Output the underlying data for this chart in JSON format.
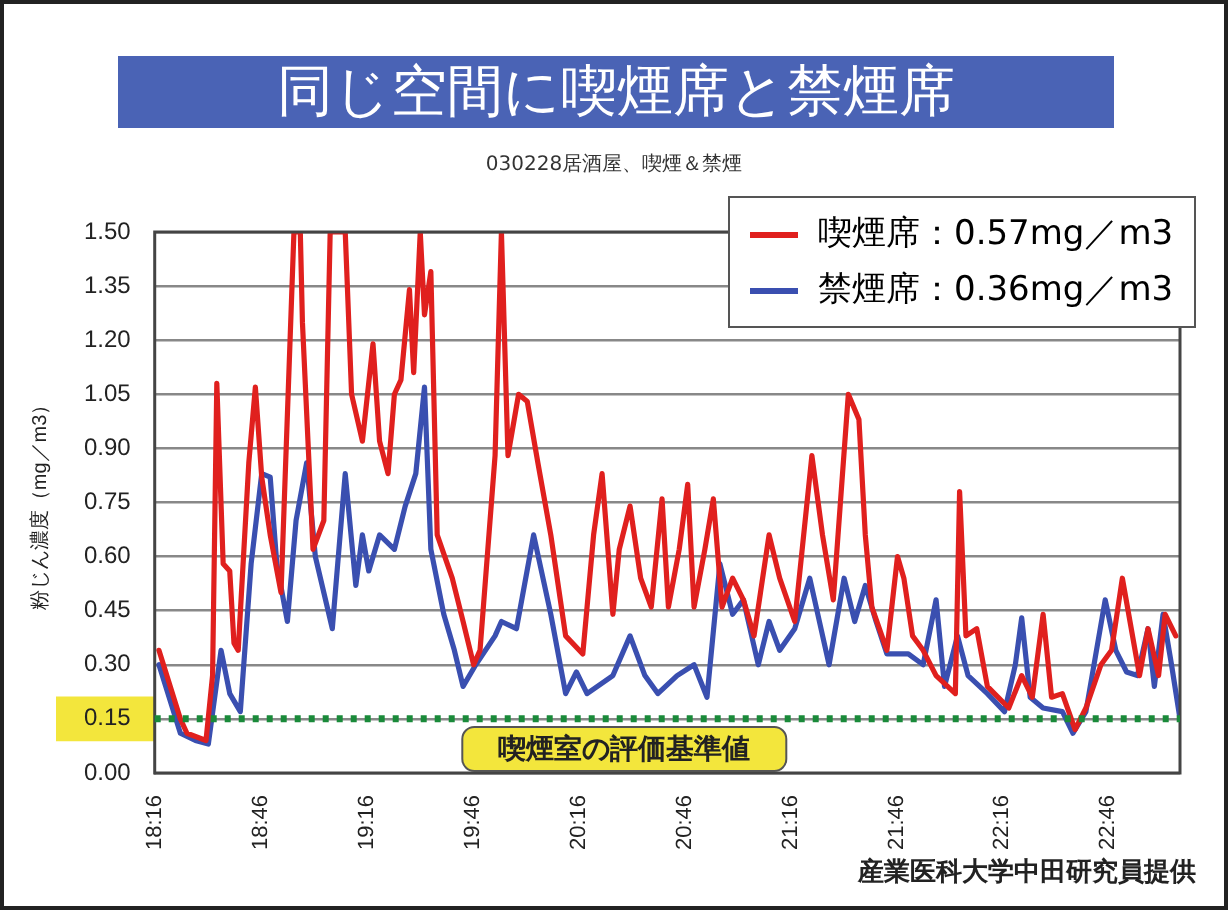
{
  "chart_data": {
    "type": "line",
    "title": "同じ空間に喫煙席と禁煙席",
    "subtitle": "030228居酒屋、喫煙＆禁煙",
    "ylabel": "粉じん濃度（mg／m3）",
    "annotations": [
      "産業医科大学中田研究員提供"
    ],
    "xlim": [
      18.267,
      23.105
    ],
    "xticks": [
      {
        "value": 18.267,
        "label": "18:16"
      },
      {
        "value": 18.767,
        "label": "18:46"
      },
      {
        "value": 19.267,
        "label": "19:16"
      },
      {
        "value": 19.767,
        "label": "19:46"
      },
      {
        "value": 20.267,
        "label": "20:16"
      },
      {
        "value": 20.767,
        "label": "20:46"
      },
      {
        "value": 21.267,
        "label": "21:16"
      },
      {
        "value": 21.767,
        "label": "21:46"
      },
      {
        "value": 22.267,
        "label": "22:16"
      },
      {
        "value": 22.767,
        "label": "22:46"
      }
    ],
    "ylim": [
      0,
      1.5
    ],
    "yticks": [
      {
        "value": 0,
        "label": "0.00"
      },
      {
        "value": 0.15,
        "label": "0.15"
      },
      {
        "value": 0.3,
        "label": "0.30"
      },
      {
        "value": 0.45,
        "label": "0.45"
      },
      {
        "value": 0.6,
        "label": "0.60"
      },
      {
        "value": 0.75,
        "label": "0.75"
      },
      {
        "value": 0.9,
        "label": "0.90"
      },
      {
        "value": 1.05,
        "label": "1.05"
      },
      {
        "value": 1.2,
        "label": "1.20"
      },
      {
        "value": 1.35,
        "label": "1.35"
      },
      {
        "value": 1.5,
        "label": "1.50"
      }
    ],
    "grid": "y",
    "legend": "top right",
    "marker": "none",
    "ref_lines": [
      {
        "axis": "y",
        "value": 0.15,
        "label": "喫煙室の評価基準値",
        "color": "#1a8a3a",
        "line_style": "dotted"
      }
    ],
    "series": [
      {
        "name": "喫煙席：0.57mg／m3",
        "color": "#e0201e",
        "x": [
          18.287,
          18.388,
          18.419,
          18.509,
          18.54,
          18.56,
          18.59,
          18.621,
          18.641,
          18.661,
          18.711,
          18.742,
          18.772,
          18.812,
          18.863,
          18.924,
          18.954,
          18.964,
          19.014,
          19.065,
          19.095,
          19.166,
          19.196,
          19.247,
          19.297,
          19.328,
          19.368,
          19.398,
          19.429,
          19.469,
          19.489,
          19.52,
          19.54,
          19.57,
          19.6,
          19.671,
          19.722,
          19.772,
          19.802,
          19.873,
          19.903,
          19.934,
          19.984,
          20.025,
          20.075,
          20.136,
          20.206,
          20.287,
          20.338,
          20.378,
          20.429,
          20.459,
          20.51,
          20.56,
          20.61,
          20.661,
          20.691,
          20.742,
          20.782,
          20.812,
          20.863,
          20.903,
          20.944,
          20.994,
          21.045,
          21.095,
          21.166,
          21.216,
          21.287,
          21.368,
          21.418,
          21.469,
          21.54,
          21.59,
          21.62,
          21.651,
          21.722,
          21.772,
          21.802,
          21.843,
          21.893,
          21.954,
          22.045,
          22.065,
          22.095,
          22.146,
          22.196,
          22.297,
          22.358,
          22.408,
          22.459,
          22.499,
          22.55,
          22.61,
          22.661,
          22.732,
          22.782,
          22.833,
          22.863,
          22.914,
          22.954,
          23.004,
          23.035,
          23.085
        ],
        "values": [
          0.34,
          0.15,
          0.11,
          0.09,
          0.27,
          1.08,
          0.58,
          0.56,
          0.36,
          0.34,
          0.86,
          1.07,
          0.82,
          0.66,
          0.5,
          1.5,
          1.5,
          1.25,
          0.62,
          0.7,
          1.5,
          1.5,
          1.05,
          0.92,
          1.19,
          0.92,
          0.83,
          1.05,
          1.09,
          1.34,
          1.11,
          1.5,
          1.27,
          1.39,
          0.66,
          0.54,
          0.42,
          0.3,
          0.34,
          0.88,
          1.5,
          0.88,
          1.05,
          1.03,
          0.86,
          0.66,
          0.38,
          0.33,
          0.66,
          0.83,
          0.44,
          0.62,
          0.74,
          0.54,
          0.46,
          0.76,
          0.46,
          0.62,
          0.8,
          0.46,
          0.62,
          0.76,
          0.46,
          0.54,
          0.48,
          0.38,
          0.66,
          0.54,
          0.42,
          0.88,
          0.66,
          0.48,
          1.05,
          0.98,
          0.66,
          0.46,
          0.34,
          0.6,
          0.54,
          0.38,
          0.34,
          0.27,
          0.22,
          0.78,
          0.38,
          0.4,
          0.24,
          0.18,
          0.27,
          0.21,
          0.44,
          0.21,
          0.22,
          0.12,
          0.18,
          0.3,
          0.34,
          0.54,
          0.44,
          0.27,
          0.4,
          0.27,
          0.44,
          0.38
        ]
      },
      {
        "name": "禁煙席：0.36mg／m3",
        "color": "#3a4fb0",
        "x": [
          18.287,
          18.388,
          18.459,
          18.52,
          18.58,
          18.621,
          18.671,
          18.722,
          18.772,
          18.812,
          18.843,
          18.893,
          18.934,
          18.984,
          19.025,
          19.105,
          19.166,
          19.216,
          19.247,
          19.277,
          19.328,
          19.398,
          19.449,
          19.499,
          19.54,
          19.57,
          19.631,
          19.681,
          19.722,
          19.782,
          19.873,
          19.903,
          19.974,
          20.055,
          20.136,
          20.206,
          20.257,
          20.307,
          20.429,
          20.51,
          20.58,
          20.641,
          20.732,
          20.812,
          20.873,
          20.934,
          20.994,
          21.045,
          21.115,
          21.166,
          21.216,
          21.287,
          21.358,
          21.449,
          21.52,
          21.57,
          21.62,
          21.671,
          21.722,
          21.823,
          21.893,
          21.954,
          21.994,
          22.055,
          22.105,
          22.196,
          22.277,
          22.328,
          22.358,
          22.398,
          22.459,
          22.55,
          22.6,
          22.661,
          22.752,
          22.802,
          22.853,
          22.904,
          22.954,
          22.984,
          23.025,
          23.065,
          23.105
        ],
        "values": [
          0.3,
          0.11,
          0.09,
          0.08,
          0.34,
          0.22,
          0.17,
          0.58,
          0.83,
          0.82,
          0.58,
          0.42,
          0.7,
          0.86,
          0.6,
          0.4,
          0.83,
          0.52,
          0.66,
          0.56,
          0.66,
          0.62,
          0.74,
          0.83,
          1.07,
          0.62,
          0.44,
          0.34,
          0.24,
          0.3,
          0.38,
          0.42,
          0.4,
          0.66,
          0.44,
          0.22,
          0.28,
          0.22,
          0.27,
          0.38,
          0.27,
          0.22,
          0.27,
          0.3,
          0.21,
          0.58,
          0.44,
          0.48,
          0.3,
          0.42,
          0.34,
          0.4,
          0.54,
          0.3,
          0.54,
          0.42,
          0.52,
          0.42,
          0.33,
          0.33,
          0.3,
          0.48,
          0.24,
          0.38,
          0.27,
          0.22,
          0.17,
          0.3,
          0.43,
          0.21,
          0.18,
          0.17,
          0.11,
          0.17,
          0.48,
          0.34,
          0.28,
          0.27,
          0.4,
          0.24,
          0.44,
          0.3,
          0.15
        ]
      }
    ]
  }
}
